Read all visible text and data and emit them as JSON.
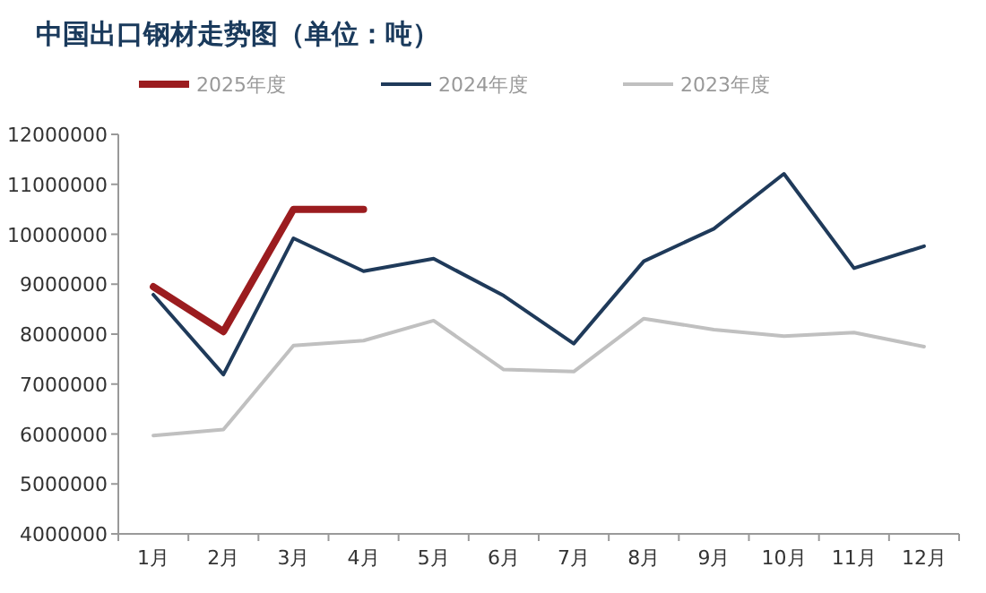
{
  "chart_data": {
    "type": "line",
    "title": "中国出口钢材走势图（单位：吨）",
    "categories": [
      "1月",
      "2月",
      "3月",
      "4月",
      "5月",
      "6月",
      "7月",
      "8月",
      "9月",
      "10月",
      "11月",
      "12月"
    ],
    "series": [
      {
        "name": "2025年度",
        "color": "#9b1c1f",
        "values": [
          8950000,
          8050000,
          10500000,
          10500000,
          null,
          null,
          null,
          null,
          null,
          null,
          null,
          null
        ]
      },
      {
        "name": "2024年度",
        "color": "#1f3a5a",
        "values": [
          8790000,
          7190000,
          9920000,
          9260000,
          9510000,
          8770000,
          7810000,
          9460000,
          10110000,
          11210000,
          9320000,
          9760000
        ]
      },
      {
        "name": "2023年度",
        "color": "#c0c0c0",
        "values": [
          5970000,
          6090000,
          7770000,
          7870000,
          8270000,
          7290000,
          7250000,
          8310000,
          8090000,
          7960000,
          8030000,
          7750000
        ]
      }
    ],
    "ylim": [
      4000000,
      12000000
    ],
    "yticks": [
      4000000,
      5000000,
      6000000,
      7000000,
      8000000,
      9000000,
      10000000,
      11000000,
      12000000
    ],
    "grid": false,
    "legend": "top",
    "marker": "none",
    "line_style": "solid"
  }
}
